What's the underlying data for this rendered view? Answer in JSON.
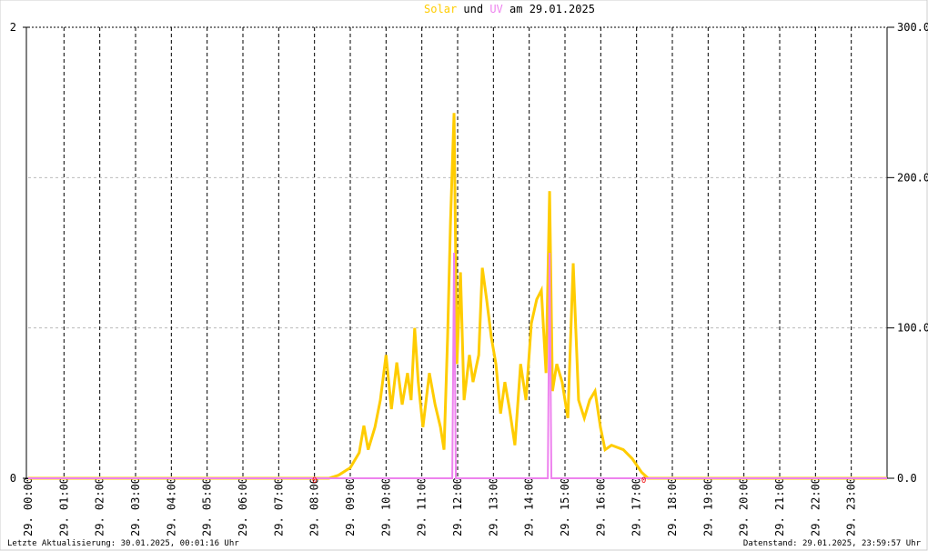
{
  "chart_data": {
    "type": "line",
    "title_connector": "und",
    "title_date": "am 29.01.2025",
    "xlim": [
      0,
      24
    ],
    "xticks": [
      {
        "value": 0,
        "label": "29. 00:00"
      },
      {
        "value": 1,
        "label": "29. 01:00"
      },
      {
        "value": 2,
        "label": "29. 02:00"
      },
      {
        "value": 3,
        "label": "29. 03:00"
      },
      {
        "value": 4,
        "label": "29. 04:00"
      },
      {
        "value": 5,
        "label": "29. 05:00"
      },
      {
        "value": 6,
        "label": "29. 06:00"
      },
      {
        "value": 7,
        "label": "29. 07:00"
      },
      {
        "value": 8,
        "label": "29. 08:00"
      },
      {
        "value": 9,
        "label": "29. 09:00"
      },
      {
        "value": 10,
        "label": "29. 10:00"
      },
      {
        "value": 11,
        "label": "29. 11:00"
      },
      {
        "value": 12,
        "label": "29. 12:00"
      },
      {
        "value": 13,
        "label": "29. 13:00"
      },
      {
        "value": 14,
        "label": "29. 14:00"
      },
      {
        "value": 15,
        "label": "29. 15:00"
      },
      {
        "value": 16,
        "label": "29. 16:00"
      },
      {
        "value": 17,
        "label": "29. 17:00"
      },
      {
        "value": 18,
        "label": "29. 18:00"
      },
      {
        "value": 19,
        "label": "29. 19:00"
      },
      {
        "value": 20,
        "label": "29. 20:00"
      },
      {
        "value": 21,
        "label": "29. 21:00"
      },
      {
        "value": 22,
        "label": "29. 22:00"
      },
      {
        "value": 23,
        "label": "29. 23:00"
      }
    ],
    "ylim": [
      0,
      2
    ],
    "yticks": [
      0,
      2
    ],
    "y2lim": [
      0,
      300
    ],
    "y2ticks": [
      {
        "value": 0,
        "label": "0.0"
      },
      {
        "value": 100,
        "label": "100.0"
      },
      {
        "value": 200,
        "label": "200.0"
      },
      {
        "value": 300,
        "label": "300.0"
      }
    ],
    "grid": true,
    "series": [
      {
        "name": "Solar",
        "color": "#ffcc00",
        "axis": "y2",
        "x": [
          0,
          8.4,
          8.67,
          9.0,
          9.25,
          9.38,
          9.5,
          9.69,
          9.84,
          10.0,
          10.15,
          10.3,
          10.45,
          10.6,
          10.7,
          10.8,
          10.9,
          11.03,
          11.21,
          11.37,
          11.52,
          11.62,
          11.72,
          11.8,
          11.9,
          11.98,
          12.08,
          12.18,
          12.33,
          12.43,
          12.59,
          12.69,
          12.81,
          12.94,
          13.07,
          13.2,
          13.32,
          13.45,
          13.6,
          13.76,
          13.91,
          14.06,
          14.21,
          14.34,
          14.47,
          14.57,
          14.65,
          14.77,
          14.92,
          15.08,
          15.23,
          15.38,
          15.54,
          15.69,
          15.84,
          15.99,
          16.12,
          16.3,
          16.63,
          16.88,
          17.14,
          17.32,
          24
        ],
        "values": [
          0,
          0,
          2,
          7,
          17,
          35,
          19,
          34,
          52,
          82,
          46,
          77,
          49,
          70,
          52,
          100,
          64,
          34,
          70,
          49,
          34,
          19,
          94,
          170,
          243,
          76,
          137,
          52,
          82,
          64,
          82,
          140,
          119,
          94,
          76,
          43,
          64,
          46,
          22,
          76,
          52,
          103,
          119,
          125,
          70,
          191,
          58,
          76,
          64,
          40,
          143,
          52,
          40,
          52,
          58,
          34,
          19,
          22,
          19,
          13,
          4,
          0,
          0
        ]
      },
      {
        "name": "UV",
        "color": "#ee82ee",
        "axis": "y",
        "x": [
          0,
          11.85,
          11.9,
          11.95,
          14.52,
          14.57,
          14.62,
          24
        ],
        "values": [
          0,
          0,
          1,
          0,
          0,
          1,
          0,
          0
        ]
      }
    ],
    "annotations": [
      {
        "x": 8.0,
        "label": "0"
      },
      {
        "x": 17.2,
        "label": "0"
      }
    ],
    "footer_left": "Letzte Aktualisierung: 30.01.2025, 00:01:16 Uhr",
    "footer_right": "Datenstand: 29.01.2025, 23:59:57 Uhr"
  }
}
